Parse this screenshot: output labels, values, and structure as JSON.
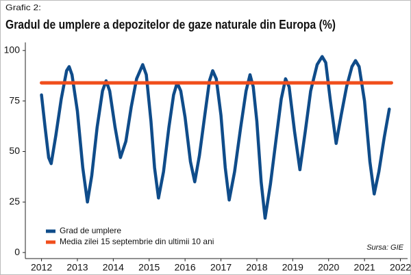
{
  "chart_data": {
    "type": "line",
    "supertitle": "Grafic 2:",
    "title": "Gradul de umplere a depozitelor de gaze naturale din Europa (%)",
    "source": "Sursa: GIE",
    "xlim": [
      2011.55,
      2022.2
    ],
    "xticks": [
      2012,
      2013,
      2014,
      2015,
      2016,
      2017,
      2018,
      2019,
      2020,
      2021,
      2022
    ],
    "ylim": [
      -3,
      104
    ],
    "yticks": [
      0,
      25,
      50,
      75,
      100
    ],
    "legend": "lower left",
    "series": [
      {
        "name": "Grad de umplere",
        "color": "#0f4c8a",
        "x": [
          2012.0,
          2012.1,
          2012.2,
          2012.27,
          2012.4,
          2012.55,
          2012.7,
          2012.77,
          2012.85,
          2013.0,
          2013.15,
          2013.28,
          2013.4,
          2013.55,
          2013.7,
          2013.8,
          2013.9,
          2014.05,
          2014.2,
          2014.35,
          2014.5,
          2014.65,
          2014.82,
          2014.92,
          2015.05,
          2015.15,
          2015.26,
          2015.4,
          2015.55,
          2015.68,
          2015.78,
          2015.88,
          2016.0,
          2016.15,
          2016.27,
          2016.4,
          2016.55,
          2016.68,
          2016.77,
          2016.87,
          2017.0,
          2017.12,
          2017.23,
          2017.38,
          2017.55,
          2017.7,
          2017.81,
          2017.9,
          2018.0,
          2018.12,
          2018.23,
          2018.38,
          2018.55,
          2018.68,
          2018.8,
          2018.9,
          2019.05,
          2019.2,
          2019.35,
          2019.5,
          2019.68,
          2019.82,
          2019.92,
          2020.05,
          2020.21,
          2020.35,
          2020.5,
          2020.65,
          2020.75,
          2020.85,
          2021.0,
          2021.15,
          2021.27,
          2021.4,
          2021.55,
          2021.69
        ],
        "values": [
          78,
          62,
          47,
          44,
          58,
          76,
          90,
          92,
          88,
          70,
          42,
          25,
          38,
          62,
          80,
          85,
          80,
          62,
          47,
          55,
          72,
          86,
          93,
          88,
          65,
          42,
          27,
          40,
          62,
          78,
          84,
          80,
          67,
          45,
          35,
          48,
          68,
          85,
          90,
          86,
          68,
          42,
          26,
          40,
          62,
          80,
          88,
          82,
          65,
          35,
          17,
          34,
          58,
          76,
          86,
          82,
          60,
          41,
          60,
          80,
          93,
          97,
          94,
          75,
          54,
          68,
          82,
          92,
          95,
          92,
          75,
          45,
          29,
          40,
          57,
          71
        ]
      },
      {
        "name": "Media zilei 15 septembrie din ultimii 10 ani",
        "color": "#f04e1c",
        "x": [
          2012.0,
          2021.75
        ],
        "values": [
          84,
          84
        ]
      }
    ]
  }
}
